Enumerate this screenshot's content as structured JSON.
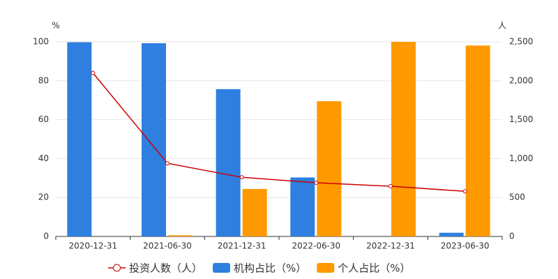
{
  "chart_data": {
    "type": "bar",
    "categories": [
      "2020-12-31",
      "2021-06-30",
      "2021-12-31",
      "2022-06-30",
      "2022-12-31",
      "2023-06-30"
    ],
    "y_label": "%",
    "y2_label": "人",
    "series": [
      {
        "name": "投资人数（人）",
        "type": "line",
        "axis": "y2",
        "color": "#cc0000",
        "values": [
          2100,
          940,
          760,
          690,
          645,
          580
        ]
      },
      {
        "name": "机构占比（%）",
        "type": "bar",
        "color": "#2e7fe0",
        "values": [
          99.8,
          99.3,
          75.7,
          30.3,
          0,
          1.9
        ]
      },
      {
        "name": "个人占比（%）",
        "type": "bar",
        "color": "#ff9900",
        "values": [
          0,
          0.6,
          24.4,
          69.5,
          100,
          98.1
        ]
      }
    ],
    "ylim": [
      0,
      100
    ],
    "yticks": [
      0,
      20,
      40,
      60,
      80,
      100
    ],
    "y2lim": [
      0,
      2500
    ],
    "y2ticks": [
      0,
      500,
      {
        "value": 1000,
        "label": "1,000"
      },
      {
        "value": 1500,
        "label": "1,500"
      },
      {
        "value": 2000,
        "label": "2,000"
      },
      {
        "value": 2500,
        "label": "2,500"
      }
    ],
    "legend": "bottom"
  }
}
